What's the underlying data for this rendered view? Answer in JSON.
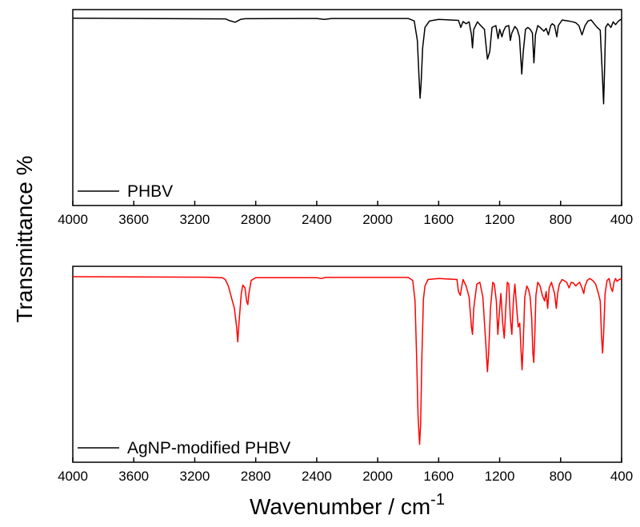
{
  "chart_data": [
    {
      "type": "line",
      "panel": "top",
      "xlim": [
        4000,
        400
      ],
      "x_reversed": true,
      "xticks": [
        4000,
        3600,
        3200,
        2800,
        2400,
        2000,
        1600,
        1200,
        800,
        400
      ],
      "xtick_labels": [
        "4000",
        "3600",
        "3200",
        "2800",
        "2400",
        "2000",
        "1600",
        "1200",
        "800",
        "400"
      ],
      "ylim": [
        0,
        100
      ],
      "yticks_shown": false,
      "legend": "bottom-left",
      "series": [
        {
          "name": "PHBV",
          "color": "#000000",
          "points": [
            [
              4000,
              98
            ],
            [
              3000,
              97.6
            ],
            [
              2970,
              96.6
            ],
            [
              2935,
              95.8
            ],
            [
              2900,
              97.3
            ],
            [
              2870,
              97.7
            ],
            [
              2400,
              97.8
            ],
            [
              2350,
              97.3
            ],
            [
              2300,
              97.8
            ],
            [
              1800,
              97.8
            ],
            [
              1760,
              96.5
            ],
            [
              1740,
              86
            ],
            [
              1730,
              68
            ],
            [
              1722,
              55
            ],
            [
              1715,
              63
            ],
            [
              1705,
              82
            ],
            [
              1690,
              93
            ],
            [
              1660,
              96.5
            ],
            [
              1600,
              97.3
            ],
            [
              1470,
              96.8
            ],
            [
              1455,
              93
            ],
            [
              1440,
              96.2
            ],
            [
              1420,
              95
            ],
            [
              1400,
              96
            ],
            [
              1385,
              89
            ],
            [
              1378,
              82
            ],
            [
              1370,
              92
            ],
            [
              1345,
              96
            ],
            [
              1330,
              94.5
            ],
            [
              1300,
              92
            ],
            [
              1280,
              76
            ],
            [
              1265,
              80
            ],
            [
              1250,
              93
            ],
            [
              1225,
              94
            ],
            [
              1210,
              87
            ],
            [
              1200,
              92
            ],
            [
              1185,
              88
            ],
            [
              1175,
              91
            ],
            [
              1160,
              93.5
            ],
            [
              1140,
              94
            ],
            [
              1130,
              86
            ],
            [
              1120,
              90
            ],
            [
              1100,
              93.5
            ],
            [
              1085,
              92
            ],
            [
              1070,
              88
            ],
            [
              1055,
              68
            ],
            [
              1045,
              80
            ],
            [
              1030,
              92
            ],
            [
              1015,
              93
            ],
            [
              1000,
              92
            ],
            [
              985,
              90
            ],
            [
              975,
              74
            ],
            [
              965,
              89
            ],
            [
              950,
              94
            ],
            [
              935,
              93
            ],
            [
              910,
              91
            ],
            [
              895,
              92.5
            ],
            [
              880,
              89
            ],
            [
              865,
              94
            ],
            [
              855,
              95
            ],
            [
              840,
              94
            ],
            [
              825,
              88
            ],
            [
              815,
              94
            ],
            [
              790,
              97
            ],
            [
              750,
              96.5
            ],
            [
              720,
              96
            ],
            [
              700,
              95.5
            ],
            [
              680,
              94
            ],
            [
              660,
              89
            ],
            [
              640,
              94
            ],
            [
              620,
              96.5
            ],
            [
              600,
              97
            ],
            [
              580,
              95
            ],
            [
              560,
              93
            ],
            [
              540,
              91.5
            ],
            [
              525,
              65
            ],
            [
              518,
              52
            ],
            [
              512,
              70
            ],
            [
              505,
              93
            ],
            [
              490,
              95
            ],
            [
              470,
              93
            ],
            [
              455,
              96
            ],
            [
              440,
              94.5
            ],
            [
              420,
              96.5
            ],
            [
              400,
              97.5
            ]
          ]
        }
      ]
    },
    {
      "type": "line",
      "panel": "bottom",
      "xlim": [
        4000,
        400
      ],
      "x_reversed": true,
      "xticks": [
        4000,
        3600,
        3200,
        2800,
        2400,
        2000,
        1600,
        1200,
        800,
        400
      ],
      "xtick_labels": [
        "4000",
        "3600",
        "3200",
        "2800",
        "2400",
        "2000",
        "1600",
        "1200",
        "800",
        "400"
      ],
      "ylim": [
        0,
        100
      ],
      "yticks_shown": false,
      "legend": "bottom-left",
      "series": [
        {
          "name": "AgNP-modified PHBV",
          "color": "#ff0000",
          "legend_line_color": "#000000",
          "points": [
            [
              4000,
              97
            ],
            [
              3100,
              96.7
            ],
            [
              3020,
              96.5
            ],
            [
              3000,
              95.5
            ],
            [
              2980,
              92
            ],
            [
              2960,
              86
            ],
            [
              2940,
              80
            ],
            [
              2925,
              70
            ],
            [
              2918,
              62
            ],
            [
              2910,
              72
            ],
            [
              2895,
              88
            ],
            [
              2885,
              92.5
            ],
            [
              2870,
              91
            ],
            [
              2860,
              84
            ],
            [
              2852,
              82
            ],
            [
              2845,
              88
            ],
            [
              2830,
              95
            ],
            [
              2800,
              96.5
            ],
            [
              2400,
              96.5
            ],
            [
              2370,
              96
            ],
            [
              2340,
              96.6
            ],
            [
              1800,
              96.6
            ],
            [
              1770,
              95
            ],
            [
              1755,
              84
            ],
            [
              1745,
              55
            ],
            [
              1735,
              22
            ],
            [
              1725,
              7
            ],
            [
              1718,
              18
            ],
            [
              1710,
              55
            ],
            [
              1700,
              85
            ],
            [
              1690,
              92
            ],
            [
              1670,
              95.5
            ],
            [
              1600,
              96
            ],
            [
              1480,
              95.5
            ],
            [
              1470,
              89
            ],
            [
              1458,
              87
            ],
            [
              1450,
              91
            ],
            [
              1440,
              95.5
            ],
            [
              1420,
              92
            ],
            [
              1400,
              86
            ],
            [
              1385,
              70
            ],
            [
              1378,
              66
            ],
            [
              1370,
              80
            ],
            [
              1350,
              93
            ],
            [
              1330,
              94
            ],
            [
              1310,
              86
            ],
            [
              1290,
              60
            ],
            [
              1280,
              46
            ],
            [
              1272,
              56
            ],
            [
              1260,
              80
            ],
            [
              1245,
              94
            ],
            [
              1235,
              93
            ],
            [
              1222,
              84
            ],
            [
              1212,
              66
            ],
            [
              1202,
              78
            ],
            [
              1192,
              88
            ],
            [
              1180,
              72
            ],
            [
              1170,
              64
            ],
            [
              1160,
              80
            ],
            [
              1150,
              94
            ],
            [
              1140,
              93
            ],
            [
              1130,
              75
            ],
            [
              1120,
              66
            ],
            [
              1110,
              84
            ],
            [
              1100,
              93
            ],
            [
              1088,
              80
            ],
            [
              1078,
              70
            ],
            [
              1068,
              72
            ],
            [
              1060,
              58
            ],
            [
              1053,
              47
            ],
            [
              1045,
              62
            ],
            [
              1035,
              86
            ],
            [
              1022,
              92
            ],
            [
              1010,
              90
            ],
            [
              1000,
              86
            ],
            [
              990,
              75
            ],
            [
              982,
              56
            ],
            [
              976,
              51
            ],
            [
              970,
              64
            ],
            [
              962,
              87
            ],
            [
              950,
              94
            ],
            [
              935,
              92
            ],
            [
              920,
              87
            ],
            [
              905,
              84
            ],
            [
              895,
              89
            ],
            [
              885,
              80
            ],
            [
              875,
              91
            ],
            [
              860,
              94
            ],
            [
              850,
              91
            ],
            [
              840,
              88
            ],
            [
              828,
              80
            ],
            [
              820,
              88
            ],
            [
              808,
              93
            ],
            [
              790,
              95.5
            ],
            [
              760,
              94
            ],
            [
              745,
              91
            ],
            [
              730,
              94
            ],
            [
              715,
              93.5
            ],
            [
              700,
              92
            ],
            [
              690,
              93
            ],
            [
              675,
              94
            ],
            [
              660,
              91
            ],
            [
              648,
              88
            ],
            [
              640,
              92
            ],
            [
              625,
              95
            ],
            [
              610,
              96
            ],
            [
              590,
              95
            ],
            [
              570,
              93
            ],
            [
              552,
              88
            ],
            [
              540,
              84
            ],
            [
              532,
              66
            ],
            [
              525,
              56
            ],
            [
              518,
              66
            ],
            [
              508,
              88
            ],
            [
              495,
              95
            ],
            [
              482,
              96
            ],
            [
              470,
              91
            ],
            [
              460,
              89
            ],
            [
              450,
              94
            ],
            [
              440,
              96
            ],
            [
              430,
              94.5
            ],
            [
              415,
              95.5
            ],
            [
              400,
              96
            ]
          ]
        }
      ]
    }
  ],
  "axis_titles": {
    "y": "Transmittance %",
    "x_text": "Wavenumber / cm",
    "x_sup": "-1"
  }
}
